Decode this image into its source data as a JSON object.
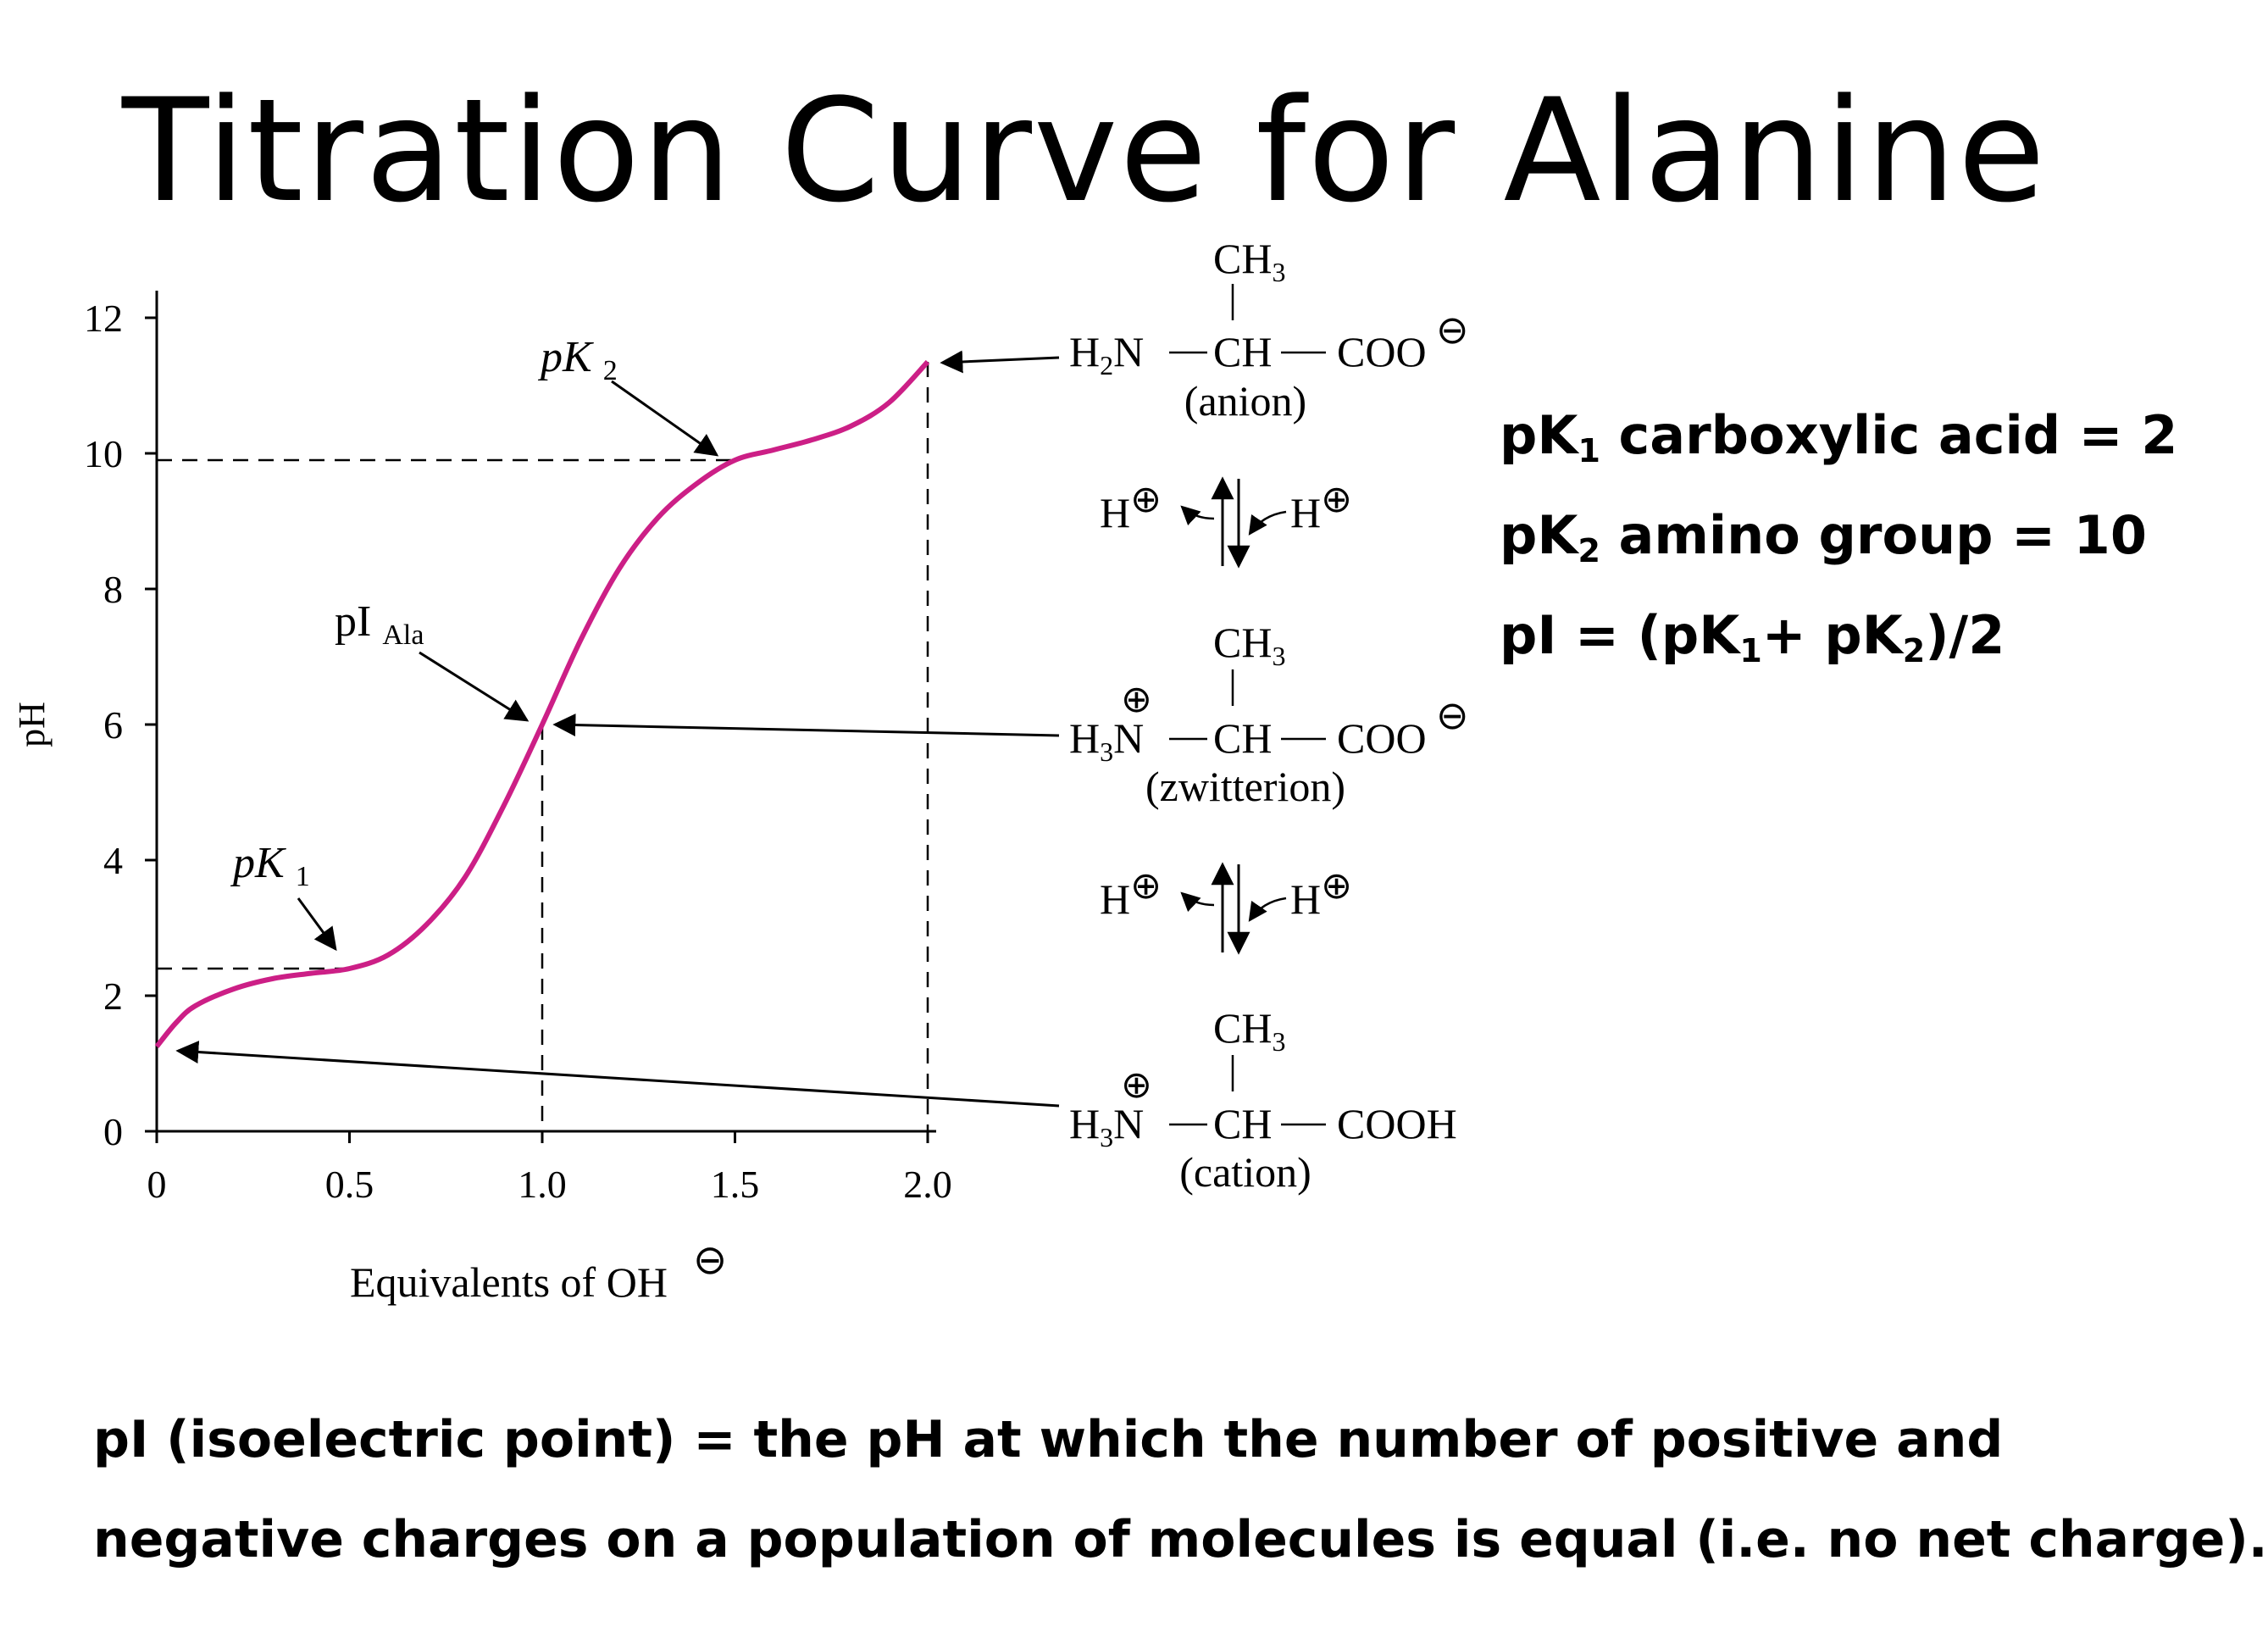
{
  "title": "Titration Curve for Alanine",
  "side_notes": {
    "line1": {
      "pre": "pK",
      "sub": "1",
      "post": " carboxylic acid = 2"
    },
    "line2": {
      "pre": "pK",
      "sub": "2",
      "post": " amino group = 10"
    },
    "line3": {
      "p1": "pI = (pK",
      "s1": "1",
      "p2": "+ pK",
      "s2": "2",
      "p3": ")/2"
    }
  },
  "definition": {
    "line1": "pI (isoelectric point) = the pH at which the number of positive and",
    "line2": "negative charges on a population of molecules is equal (i.e. no net charge)."
  },
  "species": {
    "anion": {
      "ch3": "CH",
      "ch3_sub": "3",
      "left": "H",
      "left_sub": "2",
      "left_tail": "N",
      "center": "CH",
      "right": "COO",
      "charge": "⊖",
      "label": "(anion)"
    },
    "zwitterion": {
      "ch3": "CH",
      "ch3_sub": "3",
      "left": "H",
      "left_sub": "3",
      "left_tail": "N",
      "center": "CH",
      "right": "COO",
      "charge": "⊖",
      "plus": "⊕",
      "label": "(zwitterion)"
    },
    "cation": {
      "ch3": "CH",
      "ch3_sub": "3",
      "left": "H",
      "left_sub": "3",
      "left_tail": "N",
      "center": "CH",
      "right": "COOH",
      "plus": "⊕",
      "label": "(cation)"
    },
    "proton": "H",
    "proton_charge": "⊕"
  },
  "chart_data": {
    "type": "line",
    "xlabel": "Equivalents of OH",
    "xlabel_charge": "⊖",
    "ylabel": "pH",
    "xlim": [
      0,
      2.0
    ],
    "ylim": [
      0,
      12
    ],
    "x_ticks": [
      {
        "v": 0,
        "label": "0"
      },
      {
        "v": 0.5,
        "label": "0.5"
      },
      {
        "v": 1.0,
        "label": "1.0"
      },
      {
        "v": 1.5,
        "label": "1.5"
      },
      {
        "v": 2.0,
        "label": "2.0"
      }
    ],
    "y_ticks": [
      {
        "v": 0,
        "label": "0"
      },
      {
        "v": 2,
        "label": "2"
      },
      {
        "v": 4,
        "label": "4"
      },
      {
        "v": 6,
        "label": "6"
      },
      {
        "v": 8,
        "label": "8"
      },
      {
        "v": 10,
        "label": "10"
      },
      {
        "v": 12,
        "label": "12"
      }
    ],
    "series": [
      {
        "color": "#cc1f86",
        "points": [
          [
            0,
            1.25
          ],
          [
            0.05,
            1.6
          ],
          [
            0.1,
            1.85
          ],
          [
            0.2,
            2.1
          ],
          [
            0.3,
            2.25
          ],
          [
            0.4,
            2.33
          ],
          [
            0.5,
            2.4
          ],
          [
            0.6,
            2.6
          ],
          [
            0.7,
            3.05
          ],
          [
            0.8,
            3.75
          ],
          [
            0.9,
            4.8
          ],
          [
            1.0,
            6.0
          ],
          [
            1.1,
            7.25
          ],
          [
            1.2,
            8.3
          ],
          [
            1.3,
            9.05
          ],
          [
            1.4,
            9.55
          ],
          [
            1.5,
            9.9
          ],
          [
            1.6,
            10.05
          ],
          [
            1.7,
            10.2
          ],
          [
            1.8,
            10.4
          ],
          [
            1.9,
            10.75
          ],
          [
            2.0,
            11.35
          ]
        ]
      }
    ],
    "annotations": {
      "pK1": {
        "main": "pK",
        "sub": "1",
        "at": [
          0.5,
          2.4
        ]
      },
      "pK2": {
        "main": "pK",
        "sub": "2",
        "at": [
          1.5,
          9.9
        ]
      },
      "pI": {
        "main": "pI",
        "sub": "Ala",
        "at": [
          1.0,
          6.0
        ]
      }
    },
    "reference_lines": {
      "pk1_ph": 2.4,
      "pk2_ph": 9.9,
      "pI_x": 1.0,
      "end_x": 2.0
    }
  }
}
